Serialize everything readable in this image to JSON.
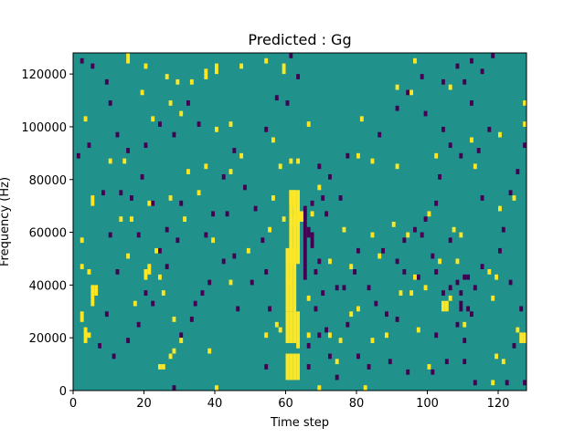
{
  "chart_data": {
    "type": "heatmap",
    "title": "Predicted : Gg",
    "xlabel": "Time step",
    "ylabel": "Frequency (Hz)",
    "xlim": [
      0,
      128
    ],
    "ylim": [
      0,
      128000
    ],
    "xticks": [
      0,
      20,
      40,
      60,
      80,
      100,
      120
    ],
    "yticks": [
      0,
      20000,
      40000,
      60000,
      80000,
      100000,
      120000
    ],
    "levels": {
      "low": -1,
      "mid": 0,
      "high": 1
    },
    "colors": {
      "low": "#440154",
      "mid": "#21918c",
      "high": "#fde725"
    },
    "grid": false,
    "high_cells": [
      [
        60,
        4000,
        5
      ],
      [
        61,
        4000,
        5
      ],
      [
        62,
        4000,
        5
      ],
      [
        63,
        4000,
        5
      ],
      [
        60,
        18000,
        6
      ],
      [
        61,
        18000,
        6
      ],
      [
        62,
        18000,
        6
      ],
      [
        63,
        18000,
        6
      ],
      [
        60,
        30000,
        12
      ],
      [
        61,
        30000,
        12
      ],
      [
        62,
        30000,
        12
      ],
      [
        61,
        48000,
        14
      ],
      [
        62,
        48000,
        14
      ],
      [
        63,
        48000,
        14
      ],
      [
        62,
        62000,
        2
      ],
      [
        63,
        64000,
        2
      ],
      [
        64,
        64000,
        2
      ],
      [
        61,
        70000,
        3
      ],
      [
        62,
        70000,
        3
      ],
      [
        24,
        8000,
        1
      ],
      [
        25,
        8000,
        1
      ],
      [
        27,
        12000,
        1
      ],
      [
        28,
        14000,
        1
      ],
      [
        3,
        18000,
        3
      ],
      [
        4,
        20000,
        1
      ],
      [
        2,
        26000,
        2
      ],
      [
        5,
        32000,
        4
      ],
      [
        6,
        36000,
        2
      ],
      [
        2,
        46000,
        1
      ],
      [
        4,
        44000,
        1
      ],
      [
        2,
        56000,
        1
      ],
      [
        5,
        70000,
        2
      ],
      [
        10,
        86000,
        1
      ],
      [
        3,
        102000,
        1
      ],
      [
        14,
        86000,
        1
      ],
      [
        15,
        124000,
        4
      ],
      [
        21,
        70000,
        1
      ],
      [
        13,
        64000,
        1
      ],
      [
        16,
        64000,
        1
      ],
      [
        20,
        42000,
        2
      ],
      [
        21,
        44000,
        2
      ],
      [
        15,
        50000,
        1
      ],
      [
        24,
        42000,
        1
      ],
      [
        17,
        32000,
        1
      ],
      [
        25,
        36000,
        1
      ],
      [
        28,
        26000,
        1
      ],
      [
        30,
        18000,
        1
      ],
      [
        38,
        14000,
        1
      ],
      [
        40,
        0,
        1
      ],
      [
        39,
        56000,
        1
      ],
      [
        40,
        98000,
        1
      ],
      [
        31,
        64000,
        1
      ],
      [
        27,
        72000,
        1
      ],
      [
        35,
        74000,
        1
      ],
      [
        32,
        82000,
        1
      ],
      [
        47,
        88000,
        1
      ],
      [
        54,
        20000,
        1
      ],
      [
        58,
        22000,
        1
      ],
      [
        57,
        24000,
        1
      ],
      [
        66,
        20000,
        1
      ],
      [
        66,
        34000,
        1
      ],
      [
        72,
        20000,
        1
      ],
      [
        75,
        18000,
        1
      ],
      [
        78,
        28000,
        1
      ],
      [
        82,
        0,
        1
      ],
      [
        84,
        18000,
        1
      ],
      [
        88,
        20000,
        1
      ],
      [
        92,
        36000,
        1
      ],
      [
        95,
        36000,
        1
      ],
      [
        96,
        42000,
        1
      ],
      [
        99,
        38000,
        1
      ],
      [
        104,
        30000,
        2
      ],
      [
        105,
        30000,
        2
      ],
      [
        106,
        34000,
        1
      ],
      [
        103,
        48000,
        1
      ],
      [
        107,
        60000,
        1
      ],
      [
        109,
        58000,
        1
      ],
      [
        108,
        48000,
        1
      ],
      [
        117,
        44000,
        1
      ],
      [
        119,
        42000,
        1
      ],
      [
        118,
        34000,
        1
      ],
      [
        126,
        18000,
        2
      ],
      [
        127,
        18000,
        2
      ],
      [
        119,
        12000,
        1
      ],
      [
        121,
        10000,
        1
      ],
      [
        120,
        68000,
        1
      ],
      [
        124,
        72000,
        1
      ],
      [
        127,
        108000,
        1
      ],
      [
        127,
        100000,
        1
      ],
      [
        120,
        96000,
        1
      ],
      [
        112,
        94000,
        1
      ],
      [
        113,
        84000,
        1
      ],
      [
        106,
        114000,
        1
      ],
      [
        105,
        128000,
        1
      ],
      [
        96,
        124000,
        1
      ],
      [
        91,
        84000,
        1
      ],
      [
        84,
        86000,
        1
      ],
      [
        80,
        88000,
        1
      ],
      [
        84,
        58000,
        1
      ],
      [
        78,
        46000,
        1
      ],
      [
        72,
        48000,
        1
      ],
      [
        76,
        60000,
        1
      ],
      [
        90,
        62000,
        1
      ],
      [
        94,
        58000,
        1
      ],
      [
        100,
        66000,
        1
      ],
      [
        102,
        88000,
        1
      ],
      [
        95,
        112000,
        1
      ],
      [
        91,
        114000,
        1
      ],
      [
        81,
        102000,
        1
      ],
      [
        69,
        76000,
        1
      ],
      [
        67,
        66000,
        1
      ],
      [
        63,
        86000,
        1
      ],
      [
        61,
        86000,
        1
      ],
      [
        56,
        94000,
        1
      ],
      [
        56,
        72000,
        1
      ],
      [
        59,
        64000,
        1
      ],
      [
        66,
        100000,
        1
      ],
      [
        59,
        120000,
        2
      ],
      [
        54,
        124000,
        1
      ],
      [
        47,
        122000,
        1
      ],
      [
        40,
        120000,
        2
      ],
      [
        37,
        118000,
        2
      ],
      [
        33,
        116000,
        1
      ],
      [
        29,
        116000,
        1
      ],
      [
        26,
        118000,
        1
      ],
      [
        20,
        122000,
        1
      ],
      [
        19,
        112000,
        1
      ],
      [
        22,
        102000,
        1
      ],
      [
        30,
        104000,
        1
      ],
      [
        44,
        100000,
        1
      ],
      [
        37,
        84000,
        1
      ],
      [
        44,
        82000,
        1
      ],
      [
        58,
        84000,
        1
      ],
      [
        27,
        108000,
        1
      ],
      [
        23,
        52000,
        1
      ],
      [
        44,
        40000,
        1
      ],
      [
        55,
        60000,
        1
      ],
      [
        49,
        52000,
        1
      ],
      [
        60,
        40000,
        1
      ],
      [
        63,
        16000,
        1
      ],
      [
        80,
        30000,
        1
      ],
      [
        86,
        50000,
        1
      ],
      [
        97,
        22000,
        1
      ],
      [
        100,
        8000,
        1
      ],
      [
        110,
        24000,
        1
      ],
      [
        118,
        2000,
        1
      ],
      [
        125,
        22000,
        1
      ],
      [
        74,
        10000,
        1
      ],
      [
        69,
        0,
        1
      ]
    ],
    "low_cells": [
      [
        65,
        42000,
        14
      ],
      [
        66,
        58000,
        2
      ],
      [
        67,
        54000,
        3
      ],
      [
        68,
        44000,
        1
      ],
      [
        70,
        36000,
        1
      ],
      [
        71,
        22000,
        1
      ],
      [
        72,
        12000,
        1
      ],
      [
        69,
        48000,
        1
      ],
      [
        68,
        30000,
        1
      ],
      [
        66,
        16000,
        1
      ],
      [
        66,
        8000,
        1
      ],
      [
        67,
        70000,
        1
      ],
      [
        70,
        72000,
        1
      ],
      [
        71,
        66000,
        1
      ],
      [
        74,
        38000,
        1
      ],
      [
        76,
        38000,
        1
      ],
      [
        79,
        44000,
        1
      ],
      [
        80,
        52000,
        1
      ],
      [
        83,
        38000,
        1
      ],
      [
        85,
        32000,
        1
      ],
      [
        88,
        28000,
        1
      ],
      [
        91,
        26000,
        1
      ],
      [
        93,
        44000,
        1
      ],
      [
        96,
        60000,
        1
      ],
      [
        98,
        58000,
        1
      ],
      [
        101,
        50000,
        1
      ],
      [
        102,
        44000,
        1
      ],
      [
        104,
        36000,
        1
      ],
      [
        106,
        38000,
        1
      ],
      [
        108,
        40000,
        1
      ],
      [
        110,
        42000,
        1
      ],
      [
        111,
        30000,
        1
      ],
      [
        112,
        28000,
        1
      ],
      [
        113,
        38000,
        1
      ],
      [
        115,
        46000,
        1
      ],
      [
        110,
        18000,
        1
      ],
      [
        108,
        24000,
        1
      ],
      [
        109,
        30000,
        2
      ],
      [
        106,
        56000,
        1
      ],
      [
        109,
        36000,
        1
      ],
      [
        111,
        42000,
        1
      ],
      [
        115,
        72000,
        1
      ],
      [
        114,
        90000,
        1
      ],
      [
        117,
        98000,
        1
      ],
      [
        112,
        108000,
        1
      ],
      [
        110,
        116000,
        1
      ],
      [
        115,
        120000,
        1
      ],
      [
        118,
        126000,
        1
      ],
      [
        108,
        122000,
        1
      ],
      [
        99,
        104000,
        1
      ],
      [
        104,
        98000,
        1
      ],
      [
        106,
        92000,
        1
      ],
      [
        109,
        88000,
        1
      ],
      [
        103,
        80000,
        1
      ],
      [
        102,
        70000,
        1
      ],
      [
        99,
        64000,
        1
      ],
      [
        93,
        56000,
        1
      ],
      [
        87,
        52000,
        1
      ],
      [
        91,
        48000,
        1
      ],
      [
        97,
        42000,
        1
      ],
      [
        102,
        20000,
        1
      ],
      [
        105,
        10000,
        1
      ],
      [
        101,
        6000,
        1
      ],
      [
        94,
        6000,
        1
      ],
      [
        89,
        10000,
        1
      ],
      [
        83,
        8000,
        1
      ],
      [
        80,
        12000,
        1
      ],
      [
        77,
        24000,
        1
      ],
      [
        74,
        4000,
        1
      ],
      [
        69,
        20000,
        1
      ],
      [
        54,
        8000,
        1
      ],
      [
        55,
        30000,
        1
      ],
      [
        50,
        40000,
        1
      ],
      [
        46,
        30000,
        1
      ],
      [
        45,
        50000,
        1
      ],
      [
        42,
        48000,
        1
      ],
      [
        38,
        40000,
        1
      ],
      [
        36,
        36000,
        1
      ],
      [
        34,
        32000,
        1
      ],
      [
        37,
        58000,
        1
      ],
      [
        39,
        66000,
        1
      ],
      [
        43,
        66000,
        1
      ],
      [
        42,
        80000,
        1
      ],
      [
        45,
        90000,
        1
      ],
      [
        48,
        76000,
        1
      ],
      [
        51,
        68000,
        1
      ],
      [
        53,
        56000,
        1
      ],
      [
        54,
        44000,
        1
      ],
      [
        54,
        98000,
        1
      ],
      [
        57,
        110000,
        1
      ],
      [
        60,
        108000,
        1
      ],
      [
        63,
        118000,
        1
      ],
      [
        61,
        126000,
        1
      ],
      [
        69,
        84000,
        1
      ],
      [
        72,
        80000,
        1
      ],
      [
        75,
        72000,
        1
      ],
      [
        77,
        88000,
        1
      ],
      [
        86,
        96000,
        1
      ],
      [
        91,
        106000,
        1
      ],
      [
        94,
        112000,
        1
      ],
      [
        98,
        118000,
        1
      ],
      [
        104,
        116000,
        1
      ],
      [
        109,
        128000,
        1
      ],
      [
        112,
        124000,
        1
      ],
      [
        127,
        92000,
        1
      ],
      [
        125,
        82000,
        1
      ],
      [
        123,
        74000,
        1
      ],
      [
        121,
        60000,
        1
      ],
      [
        120,
        52000,
        1
      ],
      [
        123,
        40000,
        1
      ],
      [
        126,
        30000,
        1
      ],
      [
        124,
        16000,
        1
      ],
      [
        122,
        2000,
        1
      ],
      [
        127,
        2000,
        1
      ],
      [
        113,
        2000,
        1
      ],
      [
        110,
        10000,
        1
      ],
      [
        30,
        20000,
        1
      ],
      [
        28,
        0,
        1
      ],
      [
        33,
        26000,
        1
      ],
      [
        26,
        46000,
        1
      ],
      [
        29,
        56000,
        1
      ],
      [
        30,
        70000,
        1
      ],
      [
        22,
        70000,
        1
      ],
      [
        19,
        80000,
        1
      ],
      [
        15,
        90000,
        1
      ],
      [
        12,
        96000,
        1
      ],
      [
        10,
        108000,
        1
      ],
      [
        9,
        116000,
        1
      ],
      [
        5,
        122000,
        1
      ],
      [
        2,
        124000,
        1
      ],
      [
        1,
        88000,
        1
      ],
      [
        4,
        92000,
        1
      ],
      [
        8,
        74000,
        1
      ],
      [
        10,
        58000,
        1
      ],
      [
        12,
        44000,
        1
      ],
      [
        9,
        28000,
        1
      ],
      [
        7,
        16000,
        1
      ],
      [
        11,
        12000,
        1
      ],
      [
        15,
        18000,
        1
      ],
      [
        18,
        24000,
        1
      ],
      [
        20,
        36000,
        1
      ],
      [
        22,
        32000,
        1
      ],
      [
        24,
        52000,
        1
      ],
      [
        26,
        60000,
        1
      ],
      [
        18,
        58000,
        1
      ],
      [
        16,
        72000,
        1
      ],
      [
        13,
        74000,
        1
      ],
      [
        20,
        92000,
        1
      ],
      [
        24,
        100000,
        1
      ],
      [
        28,
        96000,
        1
      ],
      [
        32,
        108000,
        1
      ],
      [
        35,
        100000,
        1
      ]
    ]
  }
}
